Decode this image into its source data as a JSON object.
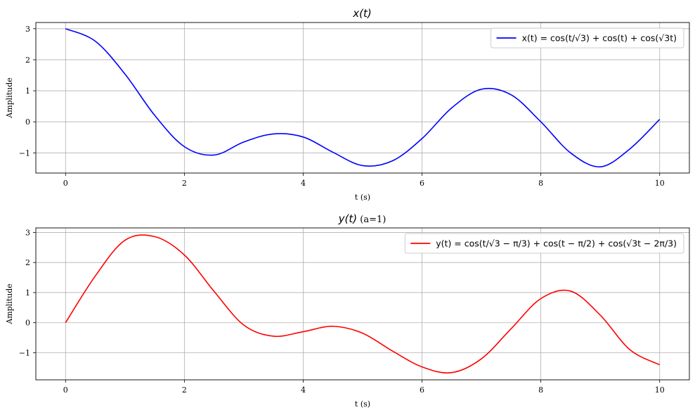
{
  "chart_data": [
    {
      "type": "line",
      "title": "x(t)",
      "title_suffix": "",
      "xlabel": "t (s)",
      "ylabel": "Amplitude",
      "xlim": [
        -0.5,
        10.5
      ],
      "ylim": [
        -1.65,
        3.2
      ],
      "xticks": [
        "0",
        "2",
        "4",
        "6",
        "8",
        "10"
      ],
      "yticks": [
        "3",
        "2",
        "1",
        "0",
        "−1"
      ],
      "xtick_values": [
        0,
        2,
        4,
        6,
        8,
        10
      ],
      "ytick_values": [
        3,
        2,
        1,
        0,
        -1
      ],
      "grid": true,
      "legend_position": "top-right",
      "series": [
        {
          "name": "x(t) = cos(t/√3) + cos(t) + cos(√3t)",
          "color": "#0000ff",
          "x": [
            0,
            0.5,
            1.0,
            1.5,
            2.0,
            2.5,
            3.0,
            3.5,
            4.0,
            4.5,
            5.0,
            5.5,
            6.0,
            6.5,
            7.0,
            7.5,
            8.0,
            8.5,
            9.0,
            9.5,
            10.0
          ],
          "y": [
            3.0,
            2.6,
            1.54,
            0.21,
            -0.8,
            -1.07,
            -0.65,
            -0.39,
            -0.49,
            -0.98,
            -1.41,
            -1.26,
            -0.54,
            0.45,
            1.05,
            0.87,
            0.0,
            -1.0,
            -1.45,
            -0.87,
            0.08
          ]
        }
      ]
    },
    {
      "type": "line",
      "title": "y(t)",
      "title_suffix": " (a=1)",
      "xlabel": "t (s)",
      "ylabel": "Amplitude",
      "xlim": [
        -0.5,
        10.5
      ],
      "ylim": [
        -1.9,
        3.15
      ],
      "xticks": [
        "0",
        "2",
        "4",
        "6",
        "8",
        "10"
      ],
      "yticks": [
        "3",
        "2",
        "1",
        "0",
        "−1"
      ],
      "xtick_values": [
        0,
        2,
        4,
        6,
        8,
        10
      ],
      "ytick_values": [
        3,
        2,
        1,
        0,
        -1
      ],
      "grid": true,
      "legend_position": "top-right",
      "series": [
        {
          "name": "y(t) = cos(t/√3 − π/3) + cos(t − π/2) + cos(√3t − 2π/3)",
          "color": "#ff0000",
          "x": [
            0,
            0.5,
            1.0,
            1.5,
            2.0,
            2.5,
            3.0,
            3.5,
            4.0,
            4.5,
            5.0,
            5.5,
            6.0,
            6.5,
            7.0,
            7.5,
            8.0,
            8.5,
            9.0,
            9.5,
            10.0
          ],
          "y": [
            0.0,
            1.55,
            2.74,
            2.86,
            2.25,
            1.04,
            -0.08,
            -0.45,
            -0.3,
            -0.12,
            -0.35,
            -0.94,
            -1.47,
            -1.66,
            -1.2,
            -0.2,
            0.8,
            1.05,
            0.25,
            -0.9,
            -1.4
          ]
        }
      ]
    }
  ]
}
